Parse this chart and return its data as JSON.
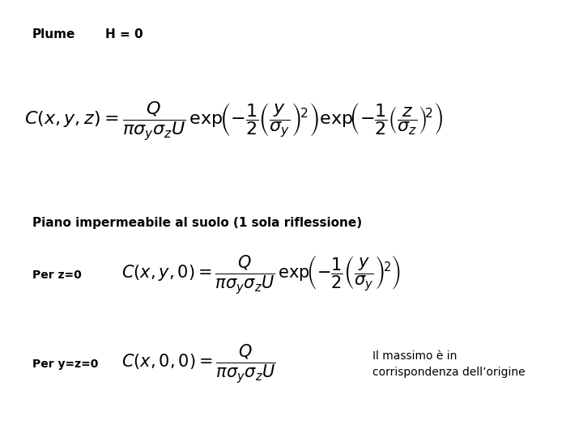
{
  "background_color": "#ffffff",
  "title_label": "Plume",
  "title_H": "H = 0",
  "eq_main": "$C(x, y, z) = \\dfrac{Q}{\\pi\\sigma_y\\sigma_z U}\\,\\mathrm{exp}\\!\\left(-\\dfrac{1}{2}\\left(\\dfrac{y}{\\sigma_y}\\right)^{\\!2}\\right)\\mathrm{exp}\\!\\left(-\\dfrac{1}{2}\\left(\\dfrac{z}{\\sigma_z}\\right)^{\\!2}\\right)$",
  "subtitle": "Piano impermeabile al suolo (1 sola riflessione)",
  "label_z0": "Per z=0",
  "eq_z0": "$C(x, y, 0) = \\dfrac{Q}{\\pi\\sigma_y\\sigma_z U}\\,\\mathrm{exp}\\!\\left(-\\dfrac{1}{2}\\left(\\dfrac{y}{\\sigma_y}\\right)^{\\!2}\\right)$",
  "label_yz0": "Per y=z=0",
  "eq_yz0": "$C(x, 0, 0) = \\dfrac{Q}{\\pi\\sigma_y\\sigma_z U}$",
  "note_yz0": "Il massimo è in\ncorrispondenza dell’origine",
  "font_size_title": 11,
  "font_size_eq": 16,
  "font_size_eq2": 15,
  "font_size_eq3": 15,
  "font_size_subtitle": 11,
  "font_size_label": 10,
  "font_size_note": 10
}
